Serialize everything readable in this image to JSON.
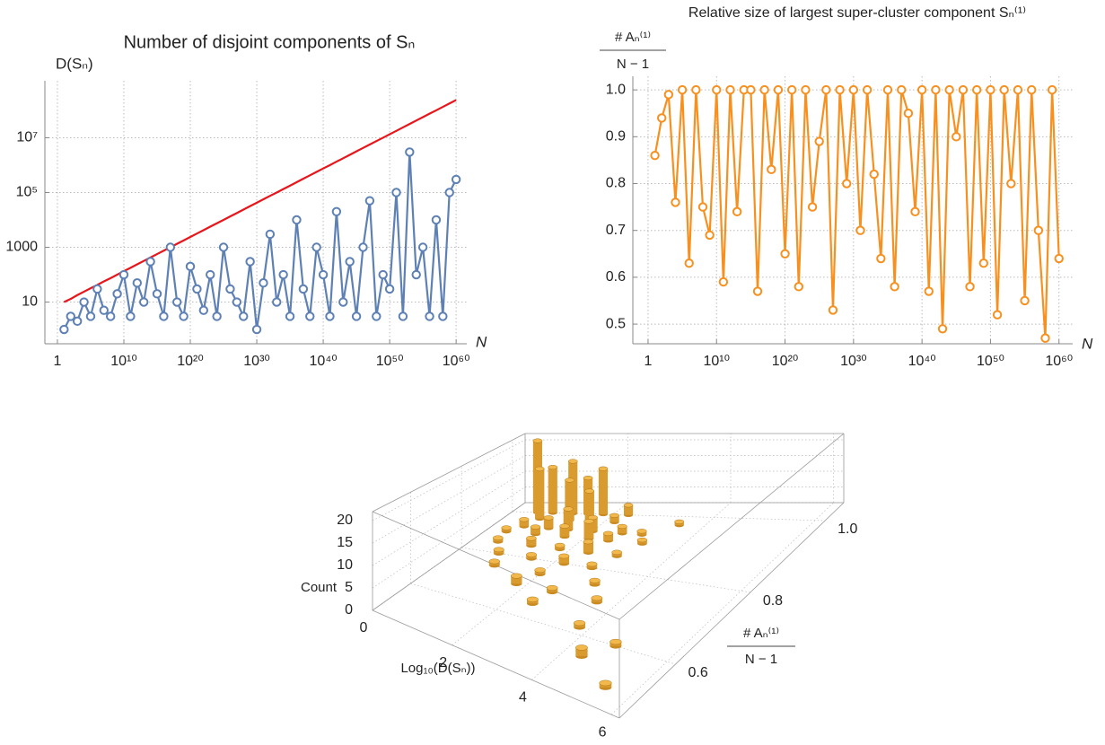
{
  "chart_data": [
    {
      "type": "line",
      "title": "Number of disjoint components of Sₙ",
      "ylabel": "D(Sₙ)",
      "xlabel": "N",
      "xlog": true,
      "ylog": true,
      "grid": true,
      "xlim": [
        0.013,
        4e+61
      ],
      "ylim": [
        0.3,
        1200000000.0
      ],
      "xticks": [
        1,
        {
          "value": 10000000000.0,
          "label": "10¹⁰"
        },
        {
          "value": 1e+20,
          "label": "10²⁰"
        },
        {
          "value": 1e+30,
          "label": "10³⁰"
        },
        {
          "value": 1e+40,
          "label": "10⁴⁰"
        },
        {
          "value": 1e+50,
          "label": "10⁵⁰"
        },
        {
          "value": 1e+60,
          "label": "10⁶⁰"
        }
      ],
      "yticks": [
        10,
        1000,
        {
          "value": 100000.0,
          "label": "10⁵"
        },
        {
          "value": 10000000.0,
          "label": "10⁷"
        }
      ],
      "x": [
        10.0,
        100.0,
        1000.0,
        10000.0,
        100000.0,
        1000000.0,
        10000000.0,
        100000000.0,
        1000000000.0,
        10000000000.0,
        100000000000.0,
        1000000000000.0,
        10000000000000.0,
        100000000000000.0,
        1000000000000000.0,
        1e+16,
        1e+17,
        1e+18,
        1e+19,
        1e+20,
        1e+21,
        1e+22,
        1e+23,
        1e+24,
        1e+25,
        1e+26,
        1e+27,
        1e+28,
        1e+29,
        1e+30,
        1e+31,
        1e+32,
        1e+33,
        1e+34,
        1e+35,
        1e+36,
        1e+37,
        1e+38,
        1e+39,
        1e+40,
        1e+41,
        1e+42,
        1e+43,
        1e+44,
        1e+45,
        1e+46,
        1e+47,
        1e+48,
        1e+49,
        1e+50,
        1e+51,
        1e+52,
        1e+53,
        1e+54,
        1e+55,
        1e+56,
        1e+57,
        1e+58,
        1e+59,
        1e+60
      ],
      "series": [
        {
          "color": "#e8151b",
          "marker": "none",
          "values": [
            10,
            13,
            18,
            24,
            32,
            42,
            57,
            75,
            100,
            134,
            178,
            238,
            318,
            424,
            566,
            755,
            1000,
            1340,
            1780,
            2380,
            3180,
            4240,
            5660,
            7550,
            10000.0,
            13400.0,
            17800.0,
            23800.0,
            31800.0,
            42400.0,
            56600.0,
            75500.0,
            100000.0,
            134000.0,
            178000.0,
            238000.0,
            318000.0,
            424000.0,
            566000.0,
            755000.0,
            1000000.0,
            1340000.0,
            1780000.0,
            2380000.0,
            3180000.0,
            4240000.0,
            5660000.0,
            7550000.0,
            10000000.0,
            13400000.0,
            17800000.0,
            23800000.0,
            31800000.0,
            42400000.0,
            56600000.0,
            75500000.0,
            100000000.0,
            134000000.0,
            178000000.0,
            238000000.0
          ]
        },
        {
          "color": "#5e81b5",
          "marker": "circle",
          "values": [
            1,
            3,
            2,
            10,
            3,
            30,
            5,
            3,
            20,
            100,
            3,
            50,
            10,
            300,
            20,
            3,
            1000,
            10,
            3,
            200,
            30,
            5,
            100,
            3,
            1000,
            30,
            10,
            3,
            300,
            1,
            50,
            3000,
            10,
            100,
            3,
            10000,
            30,
            3,
            1000,
            100,
            3,
            20000,
            10,
            300,
            3,
            1000,
            50000,
            3,
            100,
            30,
            100000,
            3,
            3000000,
            100,
            1000,
            3,
            10000,
            3,
            100000,
            300000
          ]
        }
      ]
    },
    {
      "type": "line",
      "title": "Relative size of largest super-cluster component Sₙ⁽¹⁾",
      "ylabel": [
        "# Aₙ⁽¹⁾",
        "N − 1"
      ],
      "xlabel": "N",
      "xlog": true,
      "ylog": false,
      "grid": true,
      "xlim": [
        0.006,
        1e+62
      ],
      "ylim": [
        0.458,
        1.029
      ],
      "xticks": [
        1,
        {
          "value": 10000000000.0,
          "label": "10¹⁰"
        },
        {
          "value": 1e+20,
          "label": "10²⁰"
        },
        {
          "value": 1e+30,
          "label": "10³⁰"
        },
        {
          "value": 1e+40,
          "label": "10⁴⁰"
        },
        {
          "value": 1e+50,
          "label": "10⁵⁰"
        },
        {
          "value": 1e+60,
          "label": "10⁶⁰"
        }
      ],
      "yticks": [
        0.5,
        0.6,
        0.7,
        0.8,
        0.9,
        {
          "value": 1,
          "label": "1.0"
        }
      ],
      "x": [
        10.0,
        100.0,
        1000.0,
        10000.0,
        100000.0,
        1000000.0,
        10000000.0,
        100000000.0,
        1000000000.0,
        10000000000.0,
        100000000000.0,
        1000000000000.0,
        10000000000000.0,
        100000000000000.0,
        1000000000000000.0,
        1e+16,
        1e+17,
        1e+18,
        1e+19,
        1e+20,
        1e+21,
        1e+22,
        1e+23,
        1e+24,
        1e+25,
        1e+26,
        1e+27,
        1e+28,
        1e+29,
        1e+30,
        1e+31,
        1e+32,
        1e+33,
        1e+34,
        1e+35,
        1e+36,
        1e+37,
        1e+38,
        1e+39,
        1e+40,
        1e+41,
        1e+42,
        1e+43,
        1e+44,
        1e+45,
        1e+46,
        1e+47,
        1e+48,
        1e+49,
        1e+50,
        1e+51,
        1e+52,
        1e+53,
        1e+54,
        1e+55,
        1e+56,
        1e+57,
        1e+58,
        1e+59,
        1e+60
      ],
      "series": [
        {
          "color": "#f7901e",
          "marker": "circle",
          "values": [
            0.86,
            0.94,
            0.99,
            0.76,
            1,
            0.63,
            1,
            0.75,
            0.69,
            1,
            0.59,
            1,
            0.74,
            1,
            1,
            0.57,
            1,
            0.83,
            1,
            0.65,
            1,
            0.58,
            1,
            0.75,
            0.89,
            1,
            0.53,
            1,
            0.8,
            1,
            0.7,
            1,
            0.82,
            0.64,
            1,
            0.58,
            1,
            0.95,
            0.74,
            1,
            0.57,
            1,
            0.49,
            1,
            0.9,
            1,
            0.58,
            1,
            0.63,
            1,
            0.52,
            1,
            0.8,
            1,
            0.55,
            1,
            0.7,
            0.47,
            1,
            0.64
          ]
        }
      ]
    },
    {
      "type": "bar3d",
      "xlabel": "Log₁₀(D(Sₙ))",
      "ylabel": [
        "# Aₙ⁽¹⁾",
        "N − 1"
      ],
      "zlabel": "Count",
      "color": "#f2b84b",
      "xlim": [
        0,
        6.2
      ],
      "ylim": [
        0.45,
        1.05
      ],
      "zlim": [
        0,
        22
      ],
      "xticks": [
        0,
        2,
        4,
        6
      ],
      "yticks": [
        0.6,
        0.8,
        {
          "value": 1,
          "label": "1.0"
        }
      ],
      "zticks": [
        0,
        5,
        10,
        15,
        20
      ],
      "x": [
        0.5,
        0.8,
        1.2,
        1.5,
        1.8,
        2.3,
        0.7,
        1.3,
        1.7,
        2.2,
        3.5,
        0.6,
        1.1,
        1.5,
        2.0,
        2.6,
        3.0,
        0.4,
        1.0,
        1.6,
        2.1,
        2.5,
        3.2,
        0.5,
        1.2,
        1.8,
        2.4,
        3.0,
        0.8,
        1.5,
        2.2,
        2.8,
        1.0,
        2.0,
        3.2,
        1.8,
        2.6,
        3.6,
        2.5,
        3.8,
        4.8,
        4.4,
        5.4
      ],
      "y": [
        1.0,
        1.0,
        1.0,
        1.0,
        1.0,
        1.0,
        0.97,
        0.97,
        0.97,
        0.97,
        0.97,
        0.93,
        0.93,
        0.93,
        0.93,
        0.93,
        0.93,
        0.9,
        0.9,
        0.9,
        0.9,
        0.9,
        0.9,
        0.85,
        0.85,
        0.85,
        0.85,
        0.85,
        0.8,
        0.8,
        0.8,
        0.8,
        0.75,
        0.75,
        0.75,
        0.7,
        0.7,
        0.7,
        0.65,
        0.62,
        0.6,
        0.55,
        0.5
      ],
      "values": [
        22,
        14,
        16,
        11,
        14,
        3,
        15,
        12,
        9,
        2,
        1,
        2,
        3,
        6,
        4,
        2,
        1,
        1,
        2,
        3,
        5,
        2,
        1,
        1,
        2,
        1,
        3,
        1,
        1,
        1,
        2,
        1,
        1,
        1,
        1,
        2,
        1,
        1,
        1,
        1,
        1,
        2,
        1
      ]
    }
  ]
}
